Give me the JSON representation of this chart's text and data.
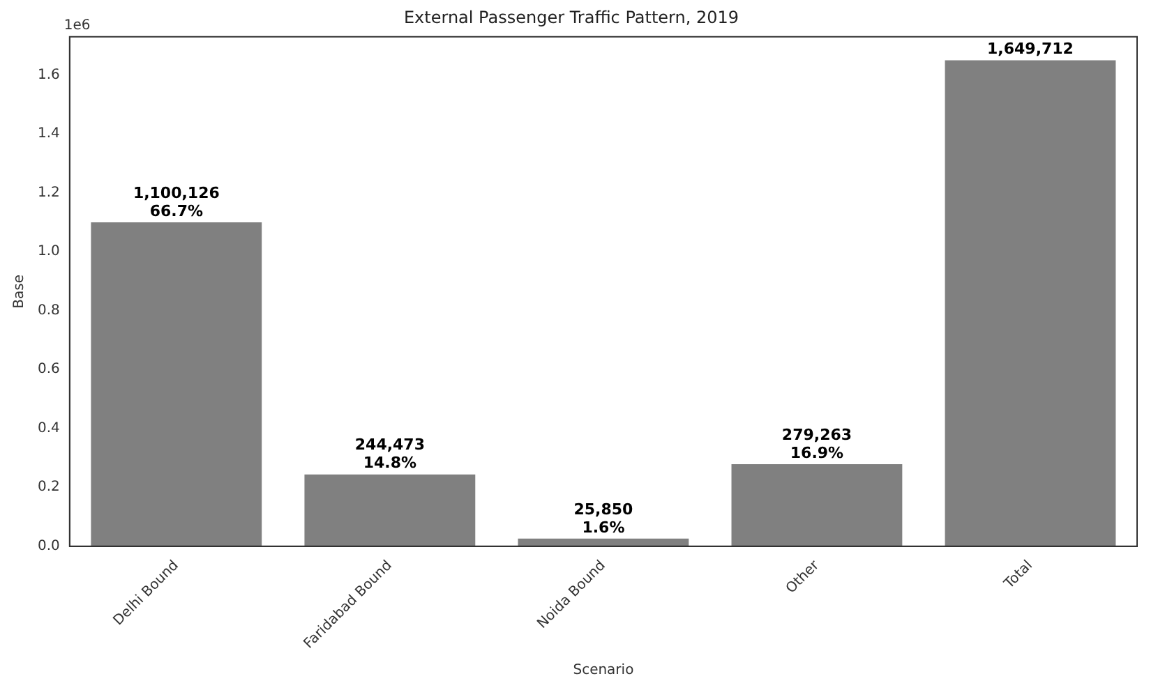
{
  "chart_data": {
    "type": "bar",
    "title": "External Passenger Traffic Pattern, 2019",
    "xlabel": "Scenario",
    "ylabel": "Base",
    "annotations": [
      "1e6",
      {
        "text": "1,100,126\n66.7%",
        "x": "Delhi Bound",
        "y": 1.1
      },
      {
        "text": "244,473\n14.8%",
        "x": "Faridabad Bound",
        "y": 0.244
      },
      {
        "text": "25,850\n1.6%",
        "x": "Noida Bound",
        "y": 0.026
      },
      {
        "text": "279,263\n16.9%",
        "x": "Other",
        "y": 0.279
      },
      {
        "text": "1,649,712",
        "x": "Total",
        "y": 1.65
      }
    ],
    "categories": [
      "Delhi Bound",
      "Faridabad Bound",
      "Noida Bound",
      "Other",
      "Total"
    ],
    "values": [
      1.1,
      0.244,
      0.026,
      0.279,
      1.65
    ],
    "color": "#808080",
    "ylim": [
      0,
      1.73
    ],
    "yticks": [
      {
        "value": 0,
        "label": "0.0"
      },
      0.2,
      0.4,
      0.6,
      0.8,
      {
        "value": 1,
        "label": "1.0"
      },
      1.2,
      1.4,
      1.6
    ],
    "grid": false,
    "legend": false
  }
}
